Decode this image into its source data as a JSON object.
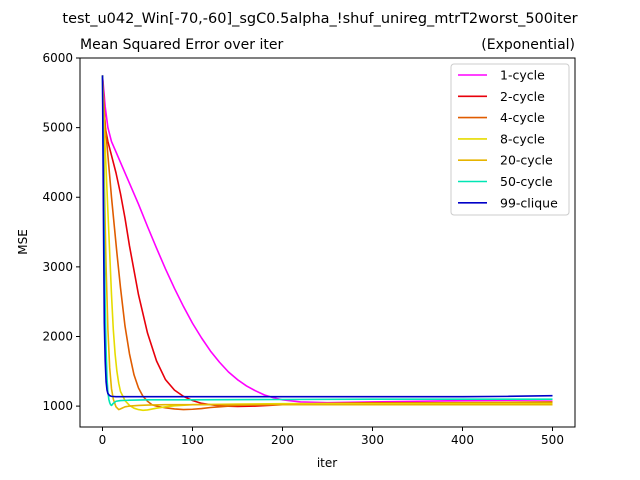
{
  "figure": {
    "suptitle": "test_u042_Win[-70,-60]_sgC0.5alpha_!shuf_unireg_mtrT2worst_500iter"
  },
  "chart_data": {
    "type": "line",
    "title": "Mean Squared Error over iter",
    "title_right": "(Exponential)",
    "xlabel": "iter",
    "ylabel": "MSE",
    "xlim": [
      -25,
      525
    ],
    "ylim": [
      700,
      6000
    ],
    "xticks": [
      0,
      100,
      200,
      300,
      400,
      500
    ],
    "yticks": [
      1000,
      2000,
      3000,
      4000,
      5000,
      6000
    ],
    "grid": false,
    "legend_position": "top-right",
    "series": [
      {
        "name": "1-cycle",
        "color": "#ff00ff",
        "x": [
          0,
          3,
          6,
          10,
          15,
          20,
          30,
          40,
          50,
          60,
          70,
          80,
          90,
          100,
          110,
          120,
          130,
          140,
          150,
          160,
          170,
          180,
          190,
          200,
          220,
          250,
          300,
          350,
          400,
          450,
          500
        ],
        "y": [
          5750,
          5300,
          5000,
          4800,
          4650,
          4500,
          4200,
          3900,
          3580,
          3270,
          2970,
          2690,
          2430,
          2190,
          1980,
          1790,
          1630,
          1490,
          1380,
          1290,
          1220,
          1160,
          1120,
          1090,
          1060,
          1050,
          1060,
          1070,
          1080,
          1085,
          1090
        ]
      },
      {
        "name": "2-cycle",
        "color": "#e8000b",
        "x": [
          0,
          3,
          6,
          10,
          15,
          20,
          25,
          30,
          40,
          50,
          60,
          70,
          80,
          90,
          100,
          110,
          120,
          130,
          140,
          150,
          170,
          200,
          250,
          300,
          350,
          400,
          450,
          500
        ],
        "y": [
          5750,
          5000,
          4800,
          4600,
          4350,
          4050,
          3700,
          3300,
          2600,
          2050,
          1650,
          1380,
          1230,
          1140,
          1080,
          1040,
          1020,
          1005,
          998,
          995,
          1000,
          1020,
          1040,
          1050,
          1050,
          1050,
          1050,
          1050
        ]
      },
      {
        "name": "4-cycle",
        "color": "#e05c00",
        "x": [
          0,
          2,
          4,
          6,
          8,
          10,
          13,
          16,
          20,
          25,
          30,
          35,
          40,
          45,
          50,
          55,
          60,
          70,
          80,
          90,
          100,
          110,
          120,
          130,
          150,
          200,
          300,
          400,
          500
        ],
        "y": [
          5750,
          5200,
          4900,
          4600,
          4300,
          4000,
          3600,
          3200,
          2700,
          2150,
          1750,
          1450,
          1260,
          1140,
          1070,
          1020,
          1000,
          975,
          960,
          950,
          955,
          965,
          980,
          990,
          1010,
          1030,
          1040,
          1050,
          1060
        ]
      },
      {
        "name": "8-cycle",
        "color": "#e6dc00",
        "x": [
          0,
          2,
          4,
          6,
          8,
          10,
          12,
          14,
          16,
          18,
          20,
          25,
          30,
          35,
          40,
          45,
          50,
          60,
          70,
          80,
          100,
          150,
          200,
          300,
          400,
          500
        ],
        "y": [
          5750,
          5000,
          4400,
          3800,
          3200,
          2600,
          2100,
          1750,
          1500,
          1330,
          1210,
          1080,
          1010,
          970,
          950,
          940,
          945,
          970,
          990,
          1005,
          1020,
          1030,
          1035,
          1040,
          1040,
          1040
        ]
      },
      {
        "name": "20-cycle",
        "color": "#e6b400",
        "x": [
          0,
          1,
          2,
          3,
          4,
          6,
          8,
          10,
          12,
          15,
          18,
          20,
          25,
          30,
          40,
          50,
          70,
          100,
          200,
          300,
          400,
          500
        ],
        "y": [
          5750,
          5100,
          4300,
          3600,
          3000,
          2100,
          1550,
          1250,
          1100,
          990,
          950,
          960,
          990,
          1000,
          1010,
          1015,
          1020,
          1020,
          1020,
          1020,
          1020,
          1020
        ]
      },
      {
        "name": "50-cycle",
        "color": "#00e6b4",
        "x": [
          0,
          1,
          2,
          3,
          4,
          5,
          6,
          7,
          8,
          9,
          10,
          12,
          15,
          20,
          30,
          50,
          100,
          200,
          300,
          400,
          500
        ],
        "y": [
          5750,
          4500,
          3300,
          2400,
          1800,
          1400,
          1200,
          1100,
          1050,
          1020,
          1010,
          1040,
          1070,
          1080,
          1085,
          1090,
          1090,
          1095,
          1100,
          1100,
          1100
        ]
      },
      {
        "name": "99-clique",
        "color": "#0000c8",
        "x": [
          0,
          1,
          2,
          3,
          4,
          5,
          6,
          8,
          10,
          15,
          20,
          50,
          100,
          200,
          300,
          400,
          450,
          500
        ],
        "y": [
          5750,
          3800,
          2200,
          1650,
          1350,
          1230,
          1180,
          1150,
          1140,
          1135,
          1135,
          1135,
          1135,
          1135,
          1135,
          1135,
          1140,
          1150
        ]
      }
    ]
  }
}
